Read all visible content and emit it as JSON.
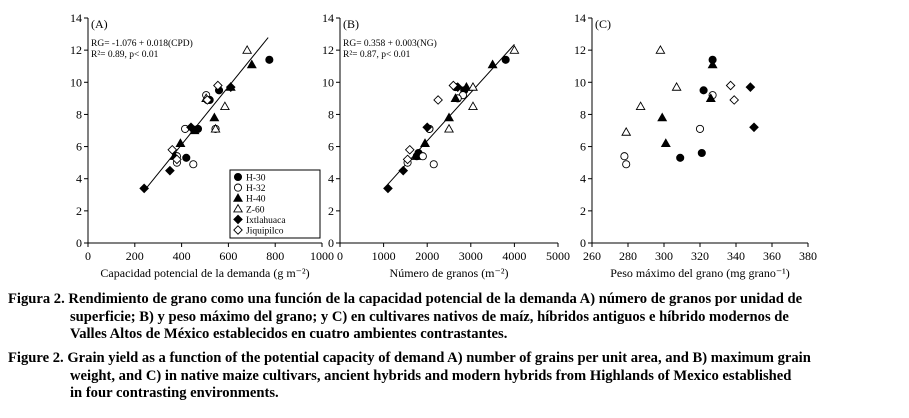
{
  "chart_data": [
    {
      "type": "scatter",
      "panel_label": "(A)",
      "xlabel": "Capacidad potencial de la demanda (g m⁻²)",
      "ylabel": "",
      "xlim": [
        0,
        1000
      ],
      "ylim": [
        0,
        14
      ],
      "xticks": [
        "0",
        "200",
        "400",
        "600",
        "800",
        "1000"
      ],
      "yticks": [
        "0",
        "2",
        "4",
        "6",
        "8",
        "10",
        "12",
        "14"
      ],
      "annotations": [
        "RG= -1.076 + 0.018(CPD)",
        "R²= 0.89, p< 0.01"
      ],
      "regression": {
        "slope": 0.018,
        "intercept": -1.076,
        "x_range": [
          240,
          770
        ]
      },
      "series": [
        {
          "name": "H-30",
          "marker": "circle-filled",
          "points": [
            [
              775,
              11.4
            ],
            [
              560,
              9.5
            ],
            [
              520,
              8.9
            ],
            [
              470,
              7.1
            ],
            [
              375,
              5.4
            ],
            [
              420,
              5.3
            ]
          ]
        },
        {
          "name": "H-32",
          "marker": "circle-open",
          "points": [
            [
              505,
              9.2
            ],
            [
              510,
              8.9
            ],
            [
              415,
              7.1
            ],
            [
              545,
              7.1
            ],
            [
              450,
              4.9
            ],
            [
              380,
              5.4
            ],
            [
              380,
              5.0
            ]
          ]
        },
        {
          "name": "H-40",
          "marker": "triangle-filled",
          "points": [
            [
              700,
              11.1
            ],
            [
              610,
              9.7
            ],
            [
              540,
              7.8
            ],
            [
              455,
              7.0
            ],
            [
              395,
              6.2
            ],
            [
              370,
              5.4
            ]
          ]
        },
        {
          "name": "Z-60",
          "marker": "triangle-open",
          "points": [
            [
              680,
              12.0
            ],
            [
              585,
              8.5
            ],
            [
              545,
              7.1
            ],
            [
              505,
              9.0
            ]
          ]
        },
        {
          "name": "Ixtlahuaca",
          "marker": "diamond-filled",
          "points": [
            [
              240,
              3.4
            ],
            [
              350,
              4.5
            ],
            [
              440,
              7.2
            ],
            [
              610,
              9.7
            ]
          ]
        },
        {
          "name": "Jiquipilco",
          "marker": "diamond-open",
          "points": [
            [
              360,
              5.8
            ],
            [
              380,
              5.2
            ],
            [
              555,
              9.8
            ],
            [
              510,
              8.9
            ]
          ]
        }
      ],
      "legend": {
        "placement": "bottom-right"
      }
    },
    {
      "type": "scatter",
      "panel_label": "(B)",
      "xlabel": "Número de granos (m⁻²)",
      "ylabel": "",
      "xlim": [
        0,
        5000
      ],
      "ylim": [
        0,
        14
      ],
      "xticks": [
        "0",
        "1000",
        "2000",
        "3000",
        "4000",
        "5000"
      ],
      "yticks": [
        "0",
        "2",
        "4",
        "6",
        "8",
        "10",
        "12",
        "14"
      ],
      "annotations": [
        "RG= 0.358 + 0.003(NG)",
        "R²= 0.87, p< 0.01"
      ],
      "regression": {
        "slope": 0.003,
        "intercept": 0.358,
        "x_range": [
          1100,
          4000
        ]
      },
      "series": [
        {
          "name": "H-30",
          "marker": "circle-filled",
          "points": [
            [
              3800,
              11.4
            ],
            [
              2850,
              9.5
            ],
            [
              2650,
              9.7
            ],
            [
              2050,
              7.1
            ],
            [
              1760,
              5.4
            ],
            [
              1800,
              5.6
            ]
          ]
        },
        {
          "name": "H-32",
          "marker": "circle-open",
          "points": [
            [
              2820,
              9.2
            ],
            [
              2700,
              9.0
            ],
            [
              2050,
              7.1
            ],
            [
              2150,
              4.9
            ],
            [
              1900,
              5.4
            ],
            [
              1550,
              5.0
            ]
          ]
        },
        {
          "name": "H-40",
          "marker": "triangle-filled",
          "points": [
            [
              3500,
              11.1
            ],
            [
              2900,
              9.7
            ],
            [
              2650,
              9.0
            ],
            [
              2500,
              7.8
            ],
            [
              1950,
              6.2
            ],
            [
              1750,
              5.4
            ]
          ]
        },
        {
          "name": "Z-60",
          "marker": "triangle-open",
          "points": [
            [
              4000,
              12.0
            ],
            [
              3050,
              8.5
            ],
            [
              2500,
              7.1
            ],
            [
              3050,
              9.7
            ]
          ]
        },
        {
          "name": "Ixtlahuaca",
          "marker": "diamond-filled",
          "points": [
            [
              1100,
              3.4
            ],
            [
              1450,
              4.5
            ],
            [
              2000,
              7.2
            ],
            [
              2700,
              9.7
            ]
          ]
        },
        {
          "name": "Jiquipilco",
          "marker": "diamond-open",
          "points": [
            [
              1600,
              5.8
            ],
            [
              1550,
              5.2
            ],
            [
              2600,
              9.8
            ],
            [
              2250,
              8.9
            ]
          ]
        }
      ]
    },
    {
      "type": "scatter",
      "panel_label": "(C)",
      "xlabel": "Peso máximo del grano (mg grano⁻¹)",
      "ylabel": "",
      "xlim": [
        260,
        380
      ],
      "ylim": [
        0,
        14
      ],
      "xticks": [
        "260",
        "280",
        "300",
        "320",
        "340",
        "360",
        "380"
      ],
      "yticks": [
        "0",
        "2",
        "4",
        "6",
        "8",
        "10",
        "12",
        "14"
      ],
      "series": [
        {
          "name": "H-30",
          "marker": "circle-filled",
          "points": [
            [
              327,
              11.4
            ],
            [
              322,
              9.5
            ],
            [
              321,
              5.6
            ],
            [
              309,
              5.3
            ]
          ]
        },
        {
          "name": "H-32",
          "marker": "circle-open",
          "points": [
            [
              278,
              5.4
            ],
            [
              279,
              4.9
            ],
            [
              320,
              7.1
            ],
            [
              327,
              9.2
            ]
          ]
        },
        {
          "name": "H-40",
          "marker": "triangle-filled",
          "points": [
            [
              327,
              11.1
            ],
            [
              326,
              9.0
            ],
            [
              299,
              7.8
            ],
            [
              301,
              6.2
            ]
          ]
        },
        {
          "name": "Z-60",
          "marker": "triangle-open",
          "points": [
            [
              298,
              12.0
            ],
            [
              287,
              8.5
            ],
            [
              279,
              6.9
            ],
            [
              307,
              9.7
            ]
          ]
        },
        {
          "name": "Ixtlahuaca",
          "marker": "diamond-filled",
          "points": [
            [
              348,
              9.7
            ],
            [
              350,
              7.2
            ]
          ]
        },
        {
          "name": "Jiquipilco",
          "marker": "diamond-open",
          "points": [
            [
              337,
              9.8
            ],
            [
              339,
              8.9
            ]
          ]
        }
      ]
    }
  ],
  "captions": {
    "es_label": "Figura 2.",
    "es_line1": "Rendimiento de grano como una función de la capacidad potencial de la demanda A) número de granos por unidad de",
    "es_line2": "superficie; B) y peso máximo del grano; y C) en cultivares nativos de maíz, híbridos antiguos e híbrido modernos de",
    "es_line3": "Valles Altos de México establecidos en cuatro ambientes contrastantes.",
    "en_label": "Figure 2.",
    "en_line1": "Grain yield as a function of the potential capacity of demand A) number of grains per unit area, and B) maximum grain",
    "en_line2": "weight, and C) in native maize cultivars, ancient hybrids and modern hybrids from Highlands of Mexico established",
    "en_line3": "in four contrasting environments."
  }
}
